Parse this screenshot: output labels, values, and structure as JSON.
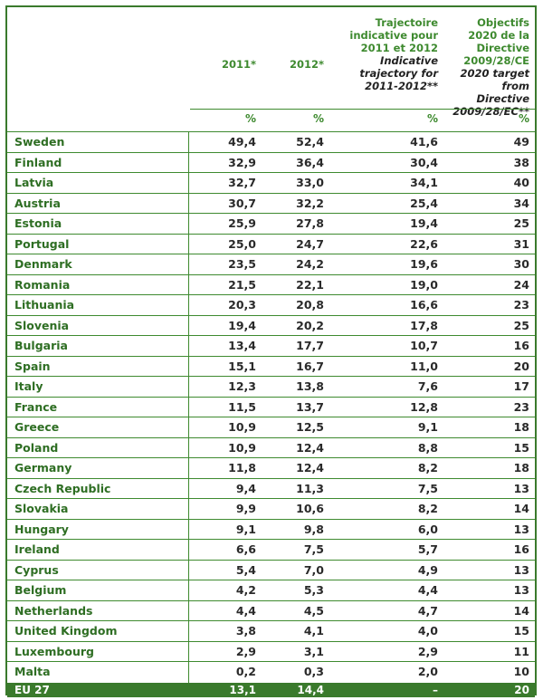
{
  "header": {
    "col2011": "2011*",
    "col2012": "2012*",
    "trajectory_fr": "Trajectoire indicative pour 2011 et 2012",
    "trajectory_en": "Indicative trajectory for 2011-2012**",
    "target_fr": "Objectifs 2020 de la Directive 2009/28/CE",
    "target_en": "2020 target from Directive 2009/28/EC**"
  },
  "units": {
    "a": "%",
    "b": "%",
    "c": "%",
    "d": "%"
  },
  "rows": [
    {
      "country": "Sweden",
      "y2011": "49,4",
      "y2012": "52,4",
      "traj": "41,6",
      "target": "49"
    },
    {
      "country": "Finland",
      "y2011": "32,9",
      "y2012": "36,4",
      "traj": "30,4",
      "target": "38"
    },
    {
      "country": "Latvia",
      "y2011": "32,7",
      "y2012": "33,0",
      "traj": "34,1",
      "target": "40"
    },
    {
      "country": "Austria",
      "y2011": "30,7",
      "y2012": "32,2",
      "traj": "25,4",
      "target": "34"
    },
    {
      "country": "Estonia",
      "y2011": "25,9",
      "y2012": "27,8",
      "traj": "19,4",
      "target": "25"
    },
    {
      "country": "Portugal",
      "y2011": "25,0",
      "y2012": "24,7",
      "traj": "22,6",
      "target": "31"
    },
    {
      "country": "Denmark",
      "y2011": "23,5",
      "y2012": "24,2",
      "traj": "19,6",
      "target": "30"
    },
    {
      "country": "Romania",
      "y2011": "21,5",
      "y2012": "22,1",
      "traj": "19,0",
      "target": "24"
    },
    {
      "country": "Lithuania",
      "y2011": "20,3",
      "y2012": "20,8",
      "traj": "16,6",
      "target": "23"
    },
    {
      "country": "Slovenia",
      "y2011": "19,4",
      "y2012": "20,2",
      "traj": "17,8",
      "target": "25"
    },
    {
      "country": "Bulgaria",
      "y2011": "13,4",
      "y2012": "17,7",
      "traj": "10,7",
      "target": "16"
    },
    {
      "country": "Spain",
      "y2011": "15,1",
      "y2012": "16,7",
      "traj": "11,0",
      "target": "20"
    },
    {
      "country": "Italy",
      "y2011": "12,3",
      "y2012": "13,8",
      "traj": "7,6",
      "target": "17"
    },
    {
      "country": "France",
      "y2011": "11,5",
      "y2012": "13,7",
      "traj": "12,8",
      "target": "23"
    },
    {
      "country": "Greece",
      "y2011": "10,9",
      "y2012": "12,5",
      "traj": "9,1",
      "target": "18"
    },
    {
      "country": "Poland",
      "y2011": "10,9",
      "y2012": "12,4",
      "traj": "8,8",
      "target": "15"
    },
    {
      "country": "Germany",
      "y2011": "11,8",
      "y2012": "12,4",
      "traj": "8,2",
      "target": "18"
    },
    {
      "country": "Czech Republic",
      "y2011": "9,4",
      "y2012": "11,3",
      "traj": "7,5",
      "target": "13"
    },
    {
      "country": "Slovakia",
      "y2011": "9,9",
      "y2012": "10,6",
      "traj": "8,2",
      "target": "14"
    },
    {
      "country": "Hungary",
      "y2011": "9,1",
      "y2012": "9,8",
      "traj": "6,0",
      "target": "13"
    },
    {
      "country": "Ireland",
      "y2011": "6,6",
      "y2012": "7,5",
      "traj": "5,7",
      "target": "16"
    },
    {
      "country": "Cyprus",
      "y2011": "5,4",
      "y2012": "7,0",
      "traj": "4,9",
      "target": "13"
    },
    {
      "country": "Belgium",
      "y2011": "4,2",
      "y2012": "5,3",
      "traj": "4,4",
      "target": "13"
    },
    {
      "country": "Netherlands",
      "y2011": "4,4",
      "y2012": "4,5",
      "traj": "4,7",
      "target": "14"
    },
    {
      "country": "United Kingdom",
      "y2011": "3,8",
      "y2012": "4,1",
      "traj": "4,0",
      "target": "15"
    },
    {
      "country": "Luxembourg",
      "y2011": "2,9",
      "y2012": "3,1",
      "traj": "2,9",
      "target": "11"
    },
    {
      "country": "Malta",
      "y2011": "0,2",
      "y2012": "0,3",
      "traj": "2,0",
      "target": "10"
    }
  ],
  "total": {
    "country": "EU 27",
    "y2011": "13,1",
    "y2012": "14,4",
    "traj": "–",
    "target": "20"
  }
}
